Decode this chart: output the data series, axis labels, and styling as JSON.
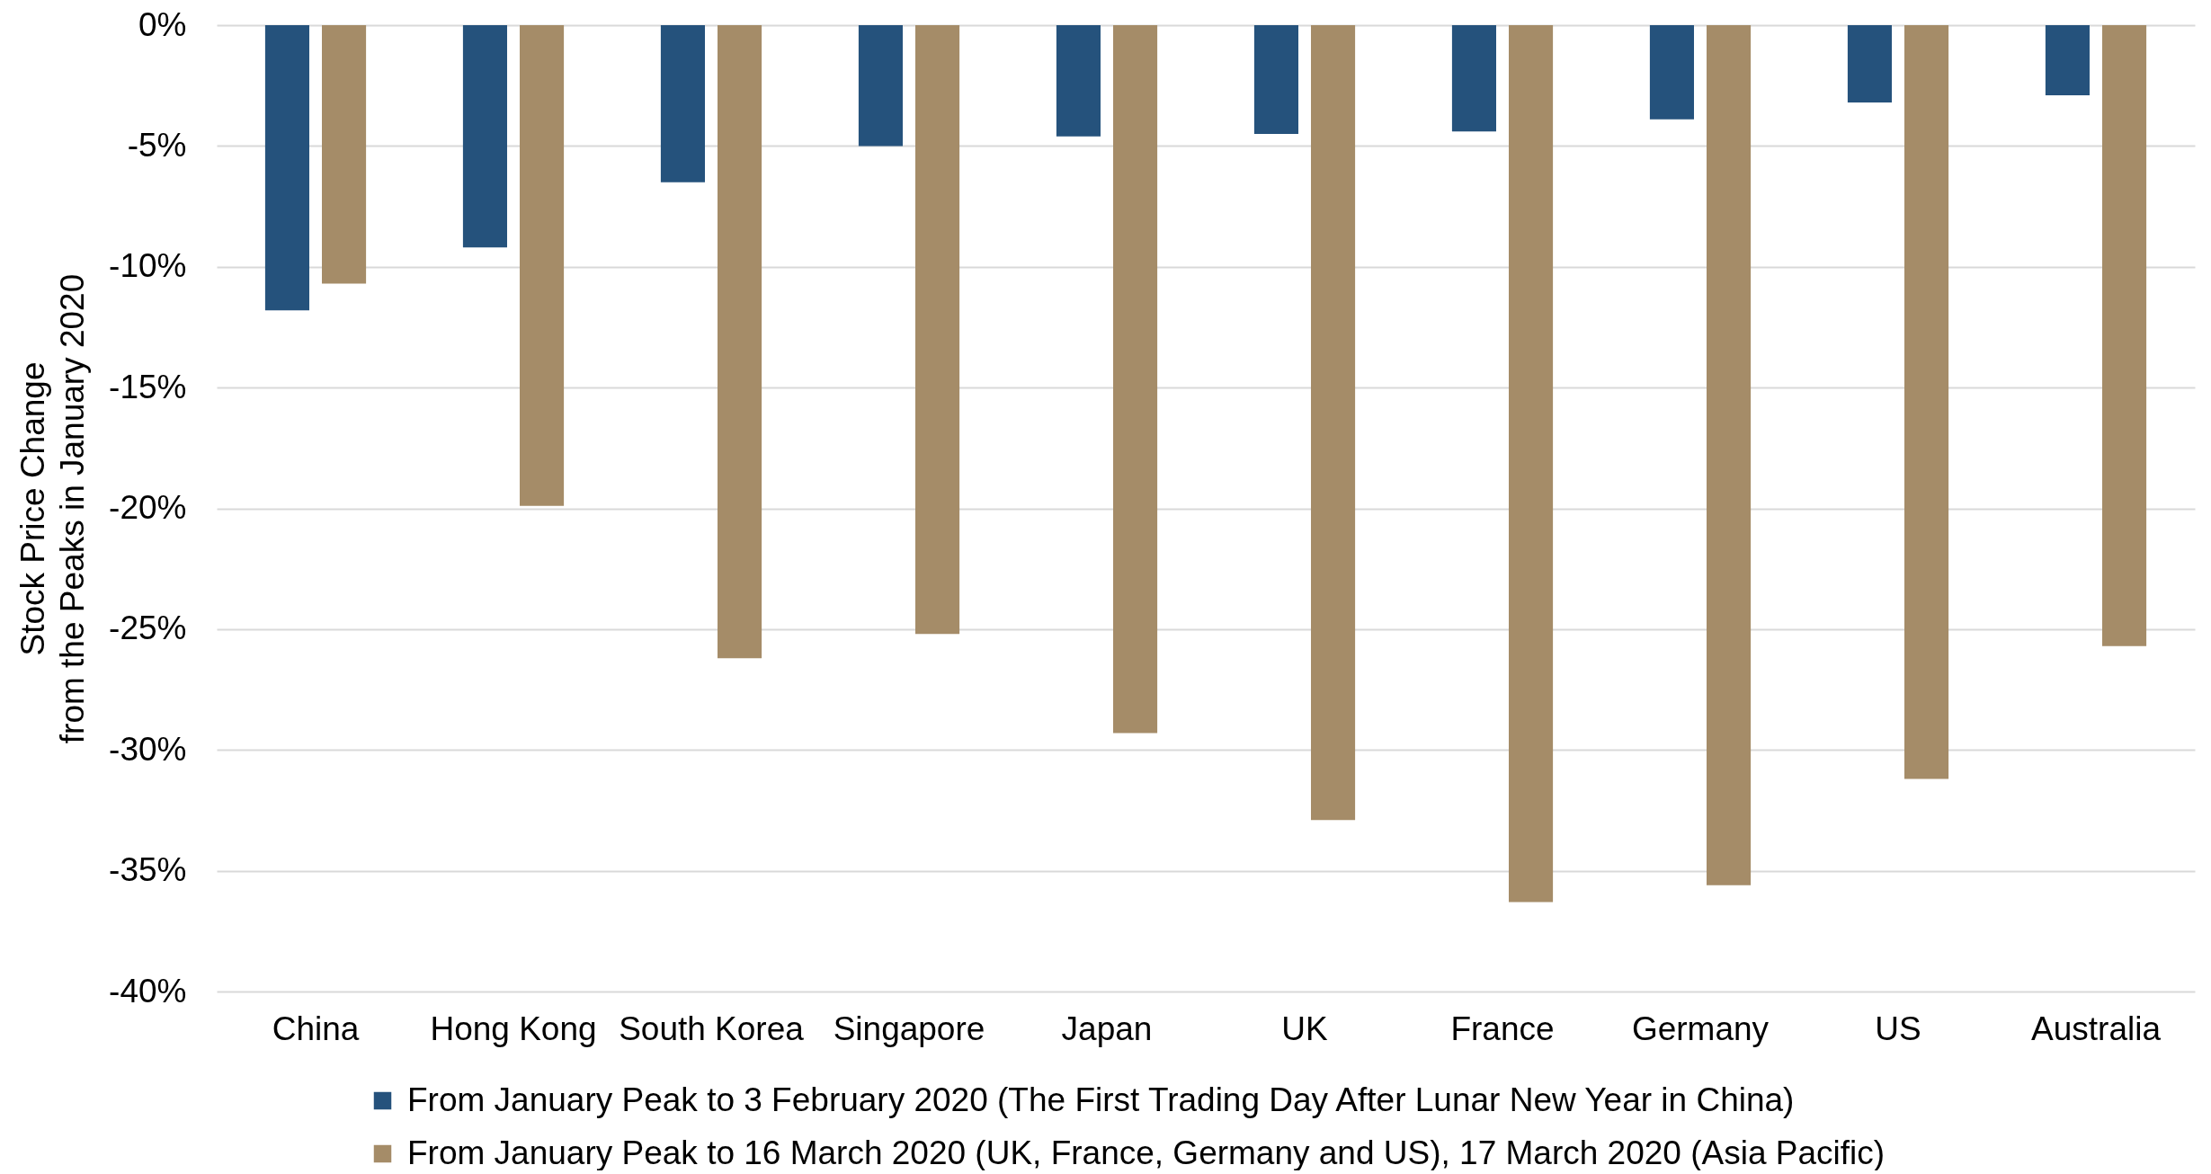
{
  "chart_data": {
    "type": "bar",
    "ylabel": "Stock Price Change\nfrom the Peaks in January 2020",
    "categories": [
      "China",
      "Hong Kong",
      "South Korea",
      "Singapore",
      "Japan",
      "UK",
      "France",
      "Germany",
      "US",
      "Australia"
    ],
    "series": [
      {
        "name": "From January Peak to 3 February 2020 (The First Trading Day After Lunar New Year in China)",
        "color": "#25527c",
        "values": [
          -11.8,
          -9.2,
          -6.5,
          -5.0,
          -4.6,
          -4.5,
          -4.4,
          -3.9,
          -3.2,
          -2.9
        ]
      },
      {
        "name": "From January Peak to 16 March 2020 (UK, France, Germany and US), 17 March 2020 (Asia Pacific)",
        "color": "#a58c68",
        "values": [
          -10.7,
          -19.9,
          -26.2,
          -25.2,
          -29.3,
          -32.9,
          -36.3,
          -35.6,
          -31.2,
          -25.7
        ]
      }
    ],
    "ylim": [
      -40,
      0
    ],
    "yticks": [
      {
        "value": 0,
        "label": "0%"
      },
      {
        "value": -5,
        "label": "-5%"
      },
      {
        "value": -10,
        "label": "-10%"
      },
      {
        "value": -15,
        "label": "-15%"
      },
      {
        "value": -20,
        "label": "-20%"
      },
      {
        "value": -25,
        "label": "-25%"
      },
      {
        "value": -30,
        "label": "-30%"
      },
      {
        "value": -35,
        "label": "-35%"
      },
      {
        "value": -40,
        "label": "-40%"
      }
    ],
    "grid": "y",
    "legend": "bottom"
  }
}
